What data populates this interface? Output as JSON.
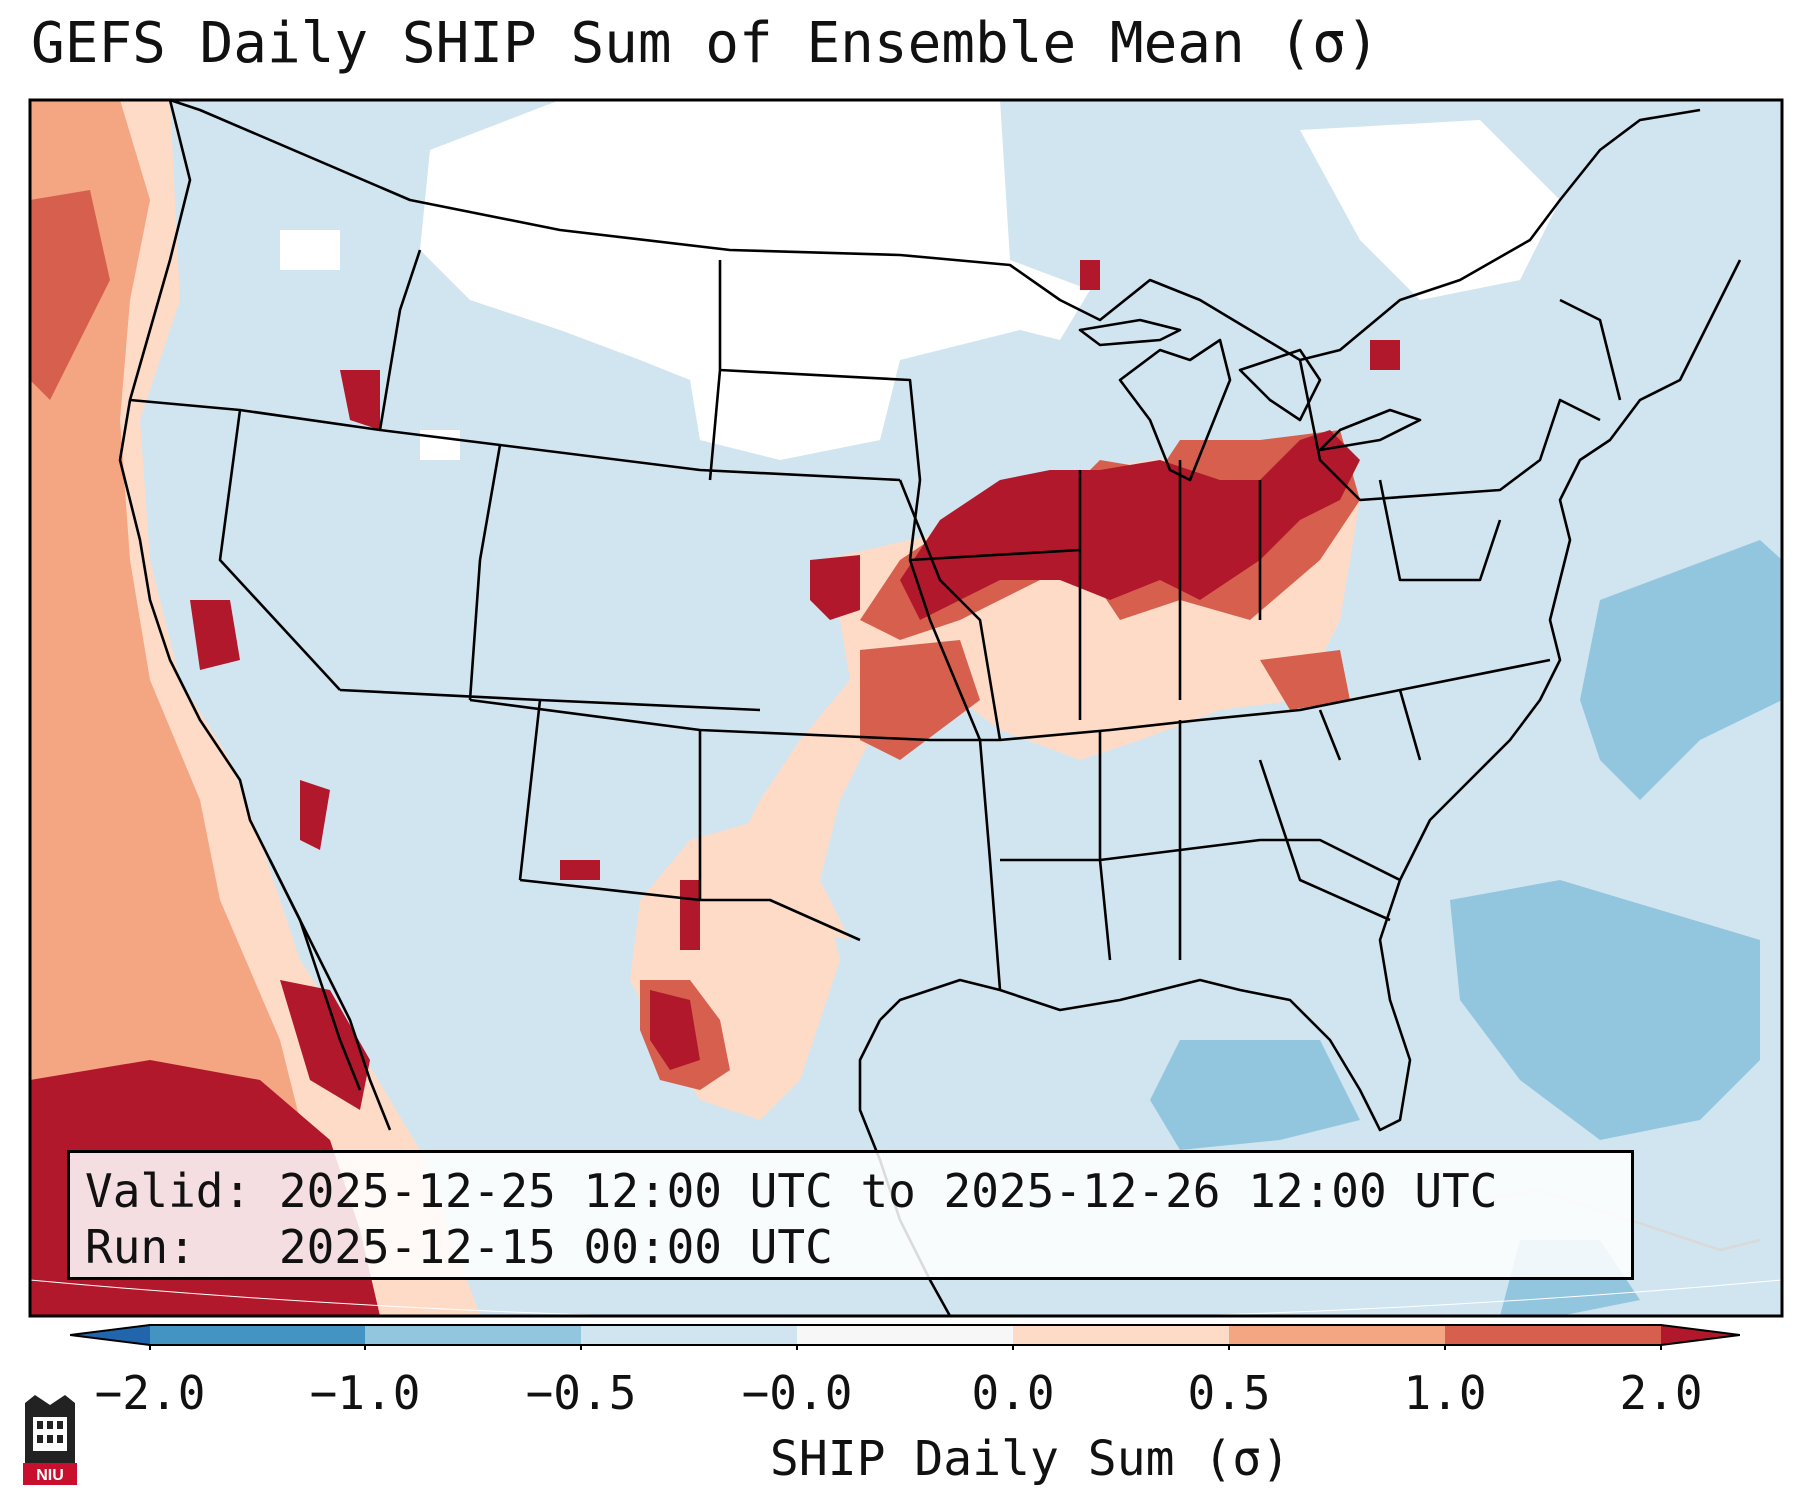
{
  "title": "GEFS Daily SHIP Sum of Ensemble Mean (σ)",
  "info": {
    "valid_label": "Valid:",
    "valid_value": "2025-12-25 12:00 UTC to 2025-12-26 12:00 UTC",
    "run_label": "Run:",
    "run_value": "2025-12-15 00:00 UTC"
  },
  "colorbar": {
    "label": "SHIP Daily Sum (σ)",
    "ticks": [
      "−2.0",
      "−1.0",
      "−0.5",
      "−0.0",
      "0.0",
      "0.5",
      "1.0",
      "2.0"
    ],
    "colors": {
      "below_min": "#2166ac",
      "neg_2_to_1": "#4393c3",
      "neg_1_to_05": "#92c5de",
      "neg_05_to_0": "#d1e5f0",
      "zero_band": "#f7f7f7",
      "pos_0_to_05": "#fddbc7",
      "pos_05_to_1": "#f4a582",
      "pos_1_to_2": "#d6604d",
      "above_max": "#b2182b"
    }
  },
  "logo": {
    "text": "NIU",
    "color": "#c8102e"
  }
}
